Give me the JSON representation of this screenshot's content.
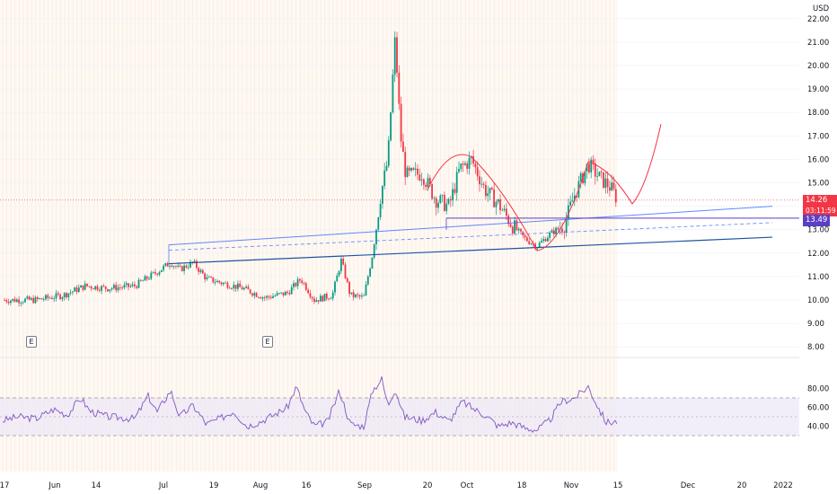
{
  "currency": "USD",
  "price_axis": {
    "main_ticks": [
      "22.00",
      "21.00",
      "20.00",
      "19.00",
      "18.00",
      "17.00",
      "16.00",
      "15.00",
      "14.00",
      "13.00",
      "12.00",
      "11.00",
      "10.00",
      "9.00",
      "8.00"
    ],
    "rsi_ticks": [
      "80.00",
      "60.00",
      "40.00"
    ]
  },
  "time_axis": {
    "labels": [
      "17",
      "Jun",
      "14",
      "Jul",
      "19",
      "Aug",
      "16",
      "Sep",
      "20",
      "Oct",
      "18",
      "Nov",
      "15",
      "Dec",
      "20",
      "2022"
    ]
  },
  "last_price": {
    "value": "14.26",
    "countdown": "03:11:59",
    "color": "#f23645"
  },
  "level_price": {
    "value": "13.49",
    "color": "#5b3fc4"
  },
  "earnings_markers": [
    "E",
    "E"
  ],
  "colors": {
    "up": "#089981",
    "down": "#f23645",
    "channel": "#2962ff",
    "rsi": "#7e57c2",
    "rsi_band": "#ede7f6",
    "projection": "#f23645"
  },
  "chart_data": {
    "type": "candlestick",
    "symbol_currency": "USD",
    "y_range": [
      8,
      22
    ],
    "x_labels": [
      "17",
      "Jun",
      "14",
      "Jul",
      "19",
      "Aug",
      "16",
      "Sep",
      "20",
      "Oct",
      "18",
      "Nov",
      "15",
      "Dec",
      "20",
      "2022"
    ],
    "close_series": [
      {
        "x": "May 17",
        "y": 10.0
      },
      {
        "x": "Jun",
        "y": 10.1
      },
      {
        "x": "Jun 14",
        "y": 10.6
      },
      {
        "x": "Jul",
        "y": 11.3
      },
      {
        "x": "Jul 8",
        "y": 11.5
      },
      {
        "x": "Jul 19",
        "y": 10.9
      },
      {
        "x": "Aug",
        "y": 10.1
      },
      {
        "x": "Aug 16",
        "y": 10.6
      },
      {
        "x": "Aug 23",
        "y": 10.0
      },
      {
        "x": "Aug 30",
        "y": 11.6
      },
      {
        "x": "Sep 1",
        "y": 10.1
      },
      {
        "x": "Sep 3",
        "y": 12.2
      },
      {
        "x": "Sep 7",
        "y": 15.8
      },
      {
        "x": "Sep 9",
        "y": 21.2
      },
      {
        "x": "Sep 13",
        "y": 18.5
      },
      {
        "x": "Sep 16",
        "y": 15.6
      },
      {
        "x": "Sep 20",
        "y": 15.3
      },
      {
        "x": "Sep 24",
        "y": 14.0
      },
      {
        "x": "Sep 28",
        "y": 15.6
      },
      {
        "x": "Oct",
        "y": 16.0
      },
      {
        "x": "Oct 6",
        "y": 14.8
      },
      {
        "x": "Oct 12",
        "y": 13.6
      },
      {
        "x": "Oct 18",
        "y": 12.6
      },
      {
        "x": "Oct 22",
        "y": 12.3
      },
      {
        "x": "Oct 26",
        "y": 13.0
      },
      {
        "x": "Nov",
        "y": 14.5
      },
      {
        "x": "Nov 5",
        "y": 15.8
      },
      {
        "x": "Nov 9",
        "y": 15.0
      },
      {
        "x": "Nov 12",
        "y": 14.26
      }
    ],
    "rsi": {
      "upper_band": 70,
      "lower_band": 30,
      "mid": 50,
      "ticks": [
        80,
        60,
        40
      ]
    }
  }
}
